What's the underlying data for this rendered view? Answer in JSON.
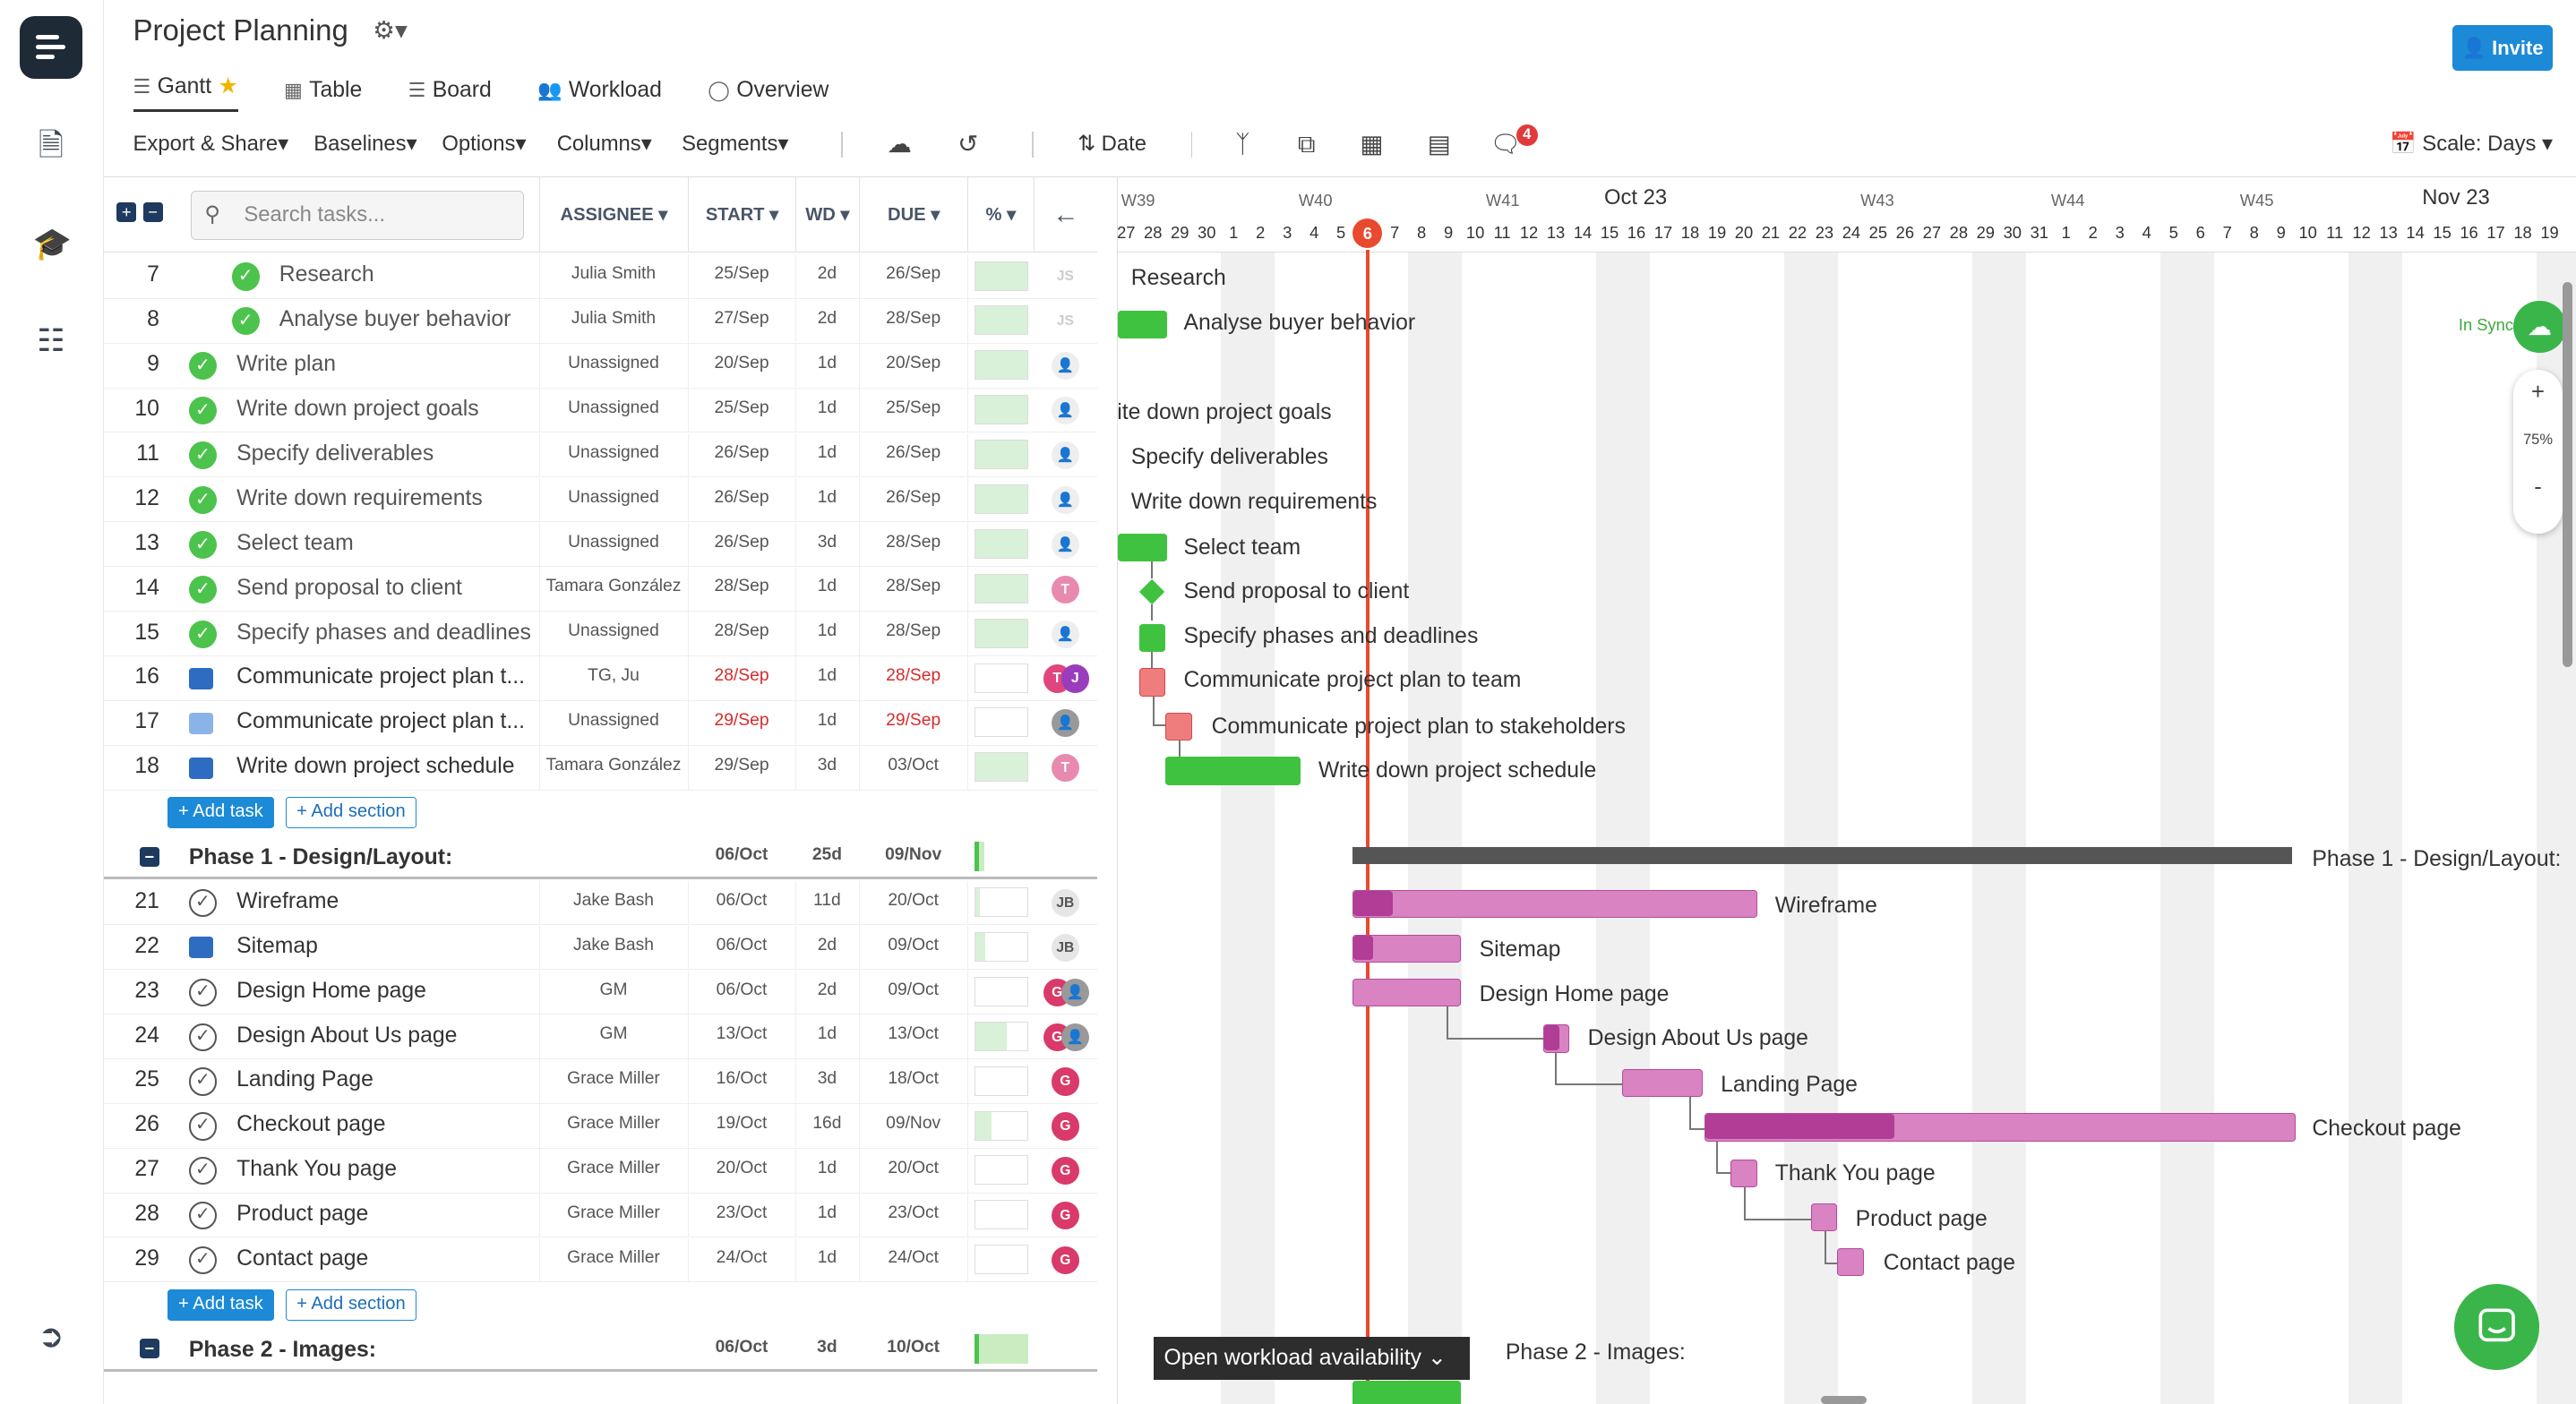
{
  "header": {
    "title": "Project Planning",
    "invite_label": "Invite"
  },
  "tabs": [
    {
      "label": "Gantt",
      "icon": "gantt-icon"
    },
    {
      "label": "Table",
      "icon": "table-icon"
    },
    {
      "label": "Board",
      "icon": "board-icon"
    },
    {
      "label": "Workload",
      "icon": "workload-icon"
    },
    {
      "label": "Overview",
      "icon": "overview-icon"
    }
  ],
  "toolbar": {
    "export": "Export & Share",
    "baselines": "Baselines",
    "options": "Options",
    "columns": "Columns",
    "segments": "Segments",
    "date": "Date",
    "comments_badge": "4",
    "scale": "Scale: Days"
  },
  "grid": {
    "search_placeholder": "Search tasks...",
    "col_assignee": "ASSIGNEE",
    "col_start": "START",
    "col_wd": "WD",
    "col_due": "DUE",
    "col_pct": "%"
  },
  "tasks": [
    {
      "n": "7",
      "name": "Research",
      "assignee": "Julia Smith",
      "start": "25/Sep",
      "wd": "2d",
      "due": "26/Sep",
      "pct": "100%",
      "st": "done",
      "av": "JS",
      "sub": true
    },
    {
      "n": "8",
      "name": "Analyse buyer behavior",
      "assignee": "Julia Smith",
      "start": "27/Sep",
      "wd": "2d",
      "due": "28/Sep",
      "pct": "100%",
      "st": "done",
      "av": "JS",
      "sub": true
    },
    {
      "n": "9",
      "name": "Write plan",
      "assignee": "Unassigned",
      "start": "20/Sep",
      "wd": "1d",
      "due": "20/Sep",
      "pct": "100%",
      "st": "done"
    },
    {
      "n": "10",
      "name": "Write down project goals",
      "assignee": "Unassigned",
      "start": "25/Sep",
      "wd": "1d",
      "due": "25/Sep",
      "pct": "100%",
      "st": "done"
    },
    {
      "n": "11",
      "name": "Specify deliverables",
      "assignee": "Unassigned",
      "start": "26/Sep",
      "wd": "1d",
      "due": "26/Sep",
      "pct": "100%",
      "st": "done"
    },
    {
      "n": "12",
      "name": "Write down requirements",
      "assignee": "Unassigned",
      "start": "26/Sep",
      "wd": "1d",
      "due": "26/Sep",
      "pct": "100%",
      "st": "done"
    },
    {
      "n": "13",
      "name": "Select team",
      "assignee": "Unassigned",
      "start": "26/Sep",
      "wd": "3d",
      "due": "28/Sep",
      "pct": "100%",
      "st": "done"
    },
    {
      "n": "14",
      "name": "Send proposal to client",
      "assignee": "Tamara González",
      "start": "28/Sep",
      "wd": "1d",
      "due": "28/Sep",
      "pct": "100%",
      "st": "done",
      "av": "T"
    },
    {
      "n": "15",
      "name": "Specify phases and deadlines",
      "assignee": "Unassigned",
      "start": "28/Sep",
      "wd": "1d",
      "due": "28/Sep",
      "pct": "100%",
      "st": "done"
    },
    {
      "n": "16",
      "name": "Communicate project plan t...",
      "assignee": "TG, Ju",
      "start": "28/Sep",
      "wd": "1d",
      "due": "28/Sep",
      "pct": "0%",
      "st": "cmt",
      "av": "TJ",
      "late": true
    },
    {
      "n": "17",
      "name": "Communicate project plan t...",
      "assignee": "Unassigned",
      "start": "29/Sep",
      "wd": "1d",
      "due": "29/Sep",
      "pct": "0%",
      "st": "cmtl",
      "late": true
    },
    {
      "n": "18",
      "name": "Write down project schedule",
      "assignee": "Tamara González",
      "start": "29/Sep",
      "wd": "3d",
      "due": "03/Oct",
      "pct": "100%",
      "st": "cmt",
      "av": "T"
    }
  ],
  "add_task": "Add task",
  "add_section": "Add section",
  "phase1": {
    "name": "Phase 1 - Design/Layout:",
    "start": "06/Oct",
    "wd": "25d",
    "due": "09/Nov",
    "pct": "19%"
  },
  "tasks2": [
    {
      "n": "21",
      "name": "Wireframe",
      "assignee": "Jake Bash",
      "start": "06/Oct",
      "wd": "11d",
      "due": "20/Oct",
      "pct": "10%",
      "st": "open",
      "av": "JB"
    },
    {
      "n": "22",
      "name": "Sitemap",
      "assignee": "Jake Bash",
      "start": "06/Oct",
      "wd": "2d",
      "due": "09/Oct",
      "pct": "20%",
      "st": "cmt",
      "av": "JB"
    },
    {
      "n": "23",
      "name": "Design Home page",
      "assignee": "GM",
      "start": "06/Oct",
      "wd": "2d",
      "due": "09/Oct",
      "pct": "0%",
      "st": "open",
      "av": "G"
    },
    {
      "n": "24",
      "name": "Design About Us page",
      "assignee": "GM",
      "start": "13/Oct",
      "wd": "1d",
      "due": "13/Oct",
      "pct": "60%",
      "st": "open",
      "av": "G"
    },
    {
      "n": "25",
      "name": "Landing Page",
      "assignee": "Grace Miller",
      "start": "16/Oct",
      "wd": "3d",
      "due": "18/Oct",
      "pct": "0%",
      "st": "open",
      "av": "G"
    },
    {
      "n": "26",
      "name": "Checkout page",
      "assignee": "Grace Miller",
      "start": "19/Oct",
      "wd": "16d",
      "due": "09/Nov",
      "pct": "32%",
      "st": "open",
      "av": "G"
    },
    {
      "n": "27",
      "name": "Thank You page",
      "assignee": "Grace Miller",
      "start": "20/Oct",
      "wd": "1d",
      "due": "20/Oct",
      "pct": "0%",
      "st": "open",
      "av": "G"
    },
    {
      "n": "28",
      "name": "Product page",
      "assignee": "Grace Miller",
      "start": "23/Oct",
      "wd": "1d",
      "due": "23/Oct",
      "pct": "0%",
      "st": "open",
      "av": "G"
    },
    {
      "n": "29",
      "name": "Contact page",
      "assignee": "Grace Miller",
      "start": "24/Oct",
      "wd": "1d",
      "due": "24/Oct",
      "pct": "0%",
      "st": "open",
      "av": "G"
    }
  ],
  "phase2": {
    "name": "Phase 2 - Images:",
    "start": "06/Oct",
    "wd": "3d",
    "due": "10/Oct",
    "pct": "100%"
  },
  "gantt": {
    "weeks": [
      "W39",
      "W40",
      "W41",
      "W43",
      "W44",
      "W45"
    ],
    "months": [
      "Oct 23",
      "Nov 23"
    ],
    "today": "6",
    "in_sync": "In Sync",
    "zoom": "75%",
    "workload_btn": "Open workload availability",
    "labels": [
      "Research",
      "Analyse buyer behavior",
      "rite down project goals",
      "Specify deliverables",
      "Write down requirements",
      "Select team",
      "Send proposal to client",
      "Specify phases and deadlines",
      "Communicate project plan to team",
      "Communicate project plan to stakeholders",
      "Write down project schedule",
      "Phase 1 - Design/Layout:",
      "Wireframe",
      "Sitemap",
      "Design Home page",
      "Design About Us page",
      "Landing Page",
      "Checkout page",
      "Thank You page",
      "Product page",
      "Contact page",
      "Phase 2 - Images:"
    ],
    "days": [
      "27",
      "28",
      "29",
      "30",
      "1",
      "2",
      "3",
      "4",
      "5",
      "6",
      "7",
      "8",
      "9",
      "10",
      "11",
      "12",
      "13",
      "14",
      "15",
      "16",
      "17",
      "18",
      "19",
      "20",
      "21",
      "22",
      "23",
      "24",
      "25",
      "26",
      "27",
      "28",
      "29",
      "30",
      "31",
      "1",
      "2",
      "3",
      "4",
      "5",
      "6",
      "7",
      "8",
      "9",
      "10",
      "11",
      "12",
      "13",
      "14",
      "15",
      "16",
      "17",
      "18",
      "19"
    ]
  }
}
